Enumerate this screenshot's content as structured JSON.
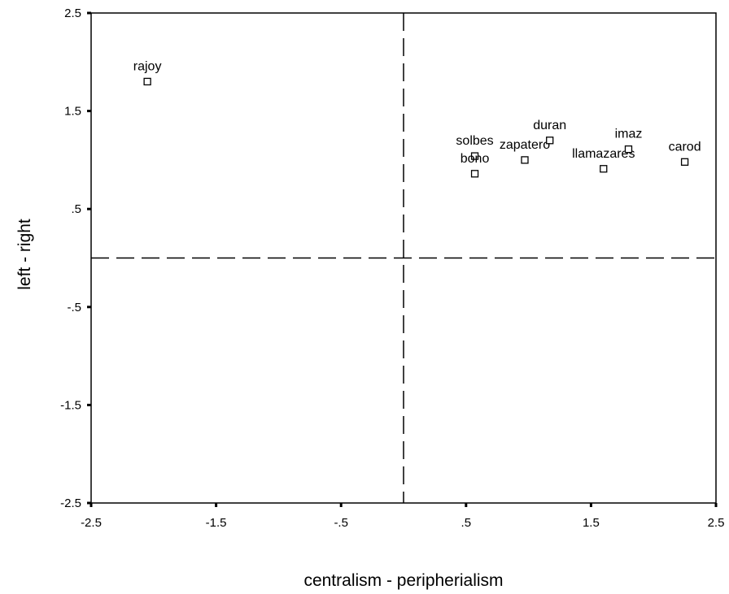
{
  "chart_data": {
    "type": "scatter",
    "xlabel": "centralism - peripherialism",
    "ylabel": "left - right",
    "xlim": [
      -2.5,
      2.5
    ],
    "ylim": [
      -2.5,
      2.5
    ],
    "xticks": [
      -2.5,
      -1.5,
      -0.5,
      0.5,
      1.5,
      2.5
    ],
    "xtick_labels": [
      "-2.5",
      "-1.5",
      "-.5",
      ".5",
      "1.5",
      "2.5"
    ],
    "yticks": [
      2.5,
      1.5,
      0.5,
      -0.5,
      -1.5,
      -2.5
    ],
    "ytick_labels": [
      "2.5",
      "1.5",
      ".5",
      "-.5",
      "-1.5",
      "-2.5"
    ],
    "reference_lines": {
      "x": 0,
      "y": 0,
      "style": "dashed"
    },
    "grid": false,
    "points": [
      {
        "label": "rajoy",
        "x": -2.05,
        "y": 1.8
      },
      {
        "label": "solbes",
        "x": 0.57,
        "y": 1.04
      },
      {
        "label": "bono",
        "x": 0.57,
        "y": 0.86
      },
      {
        "label": "zapatero",
        "x": 0.97,
        "y": 1.0
      },
      {
        "label": "duran",
        "x": 1.17,
        "y": 1.2
      },
      {
        "label": "llamazares",
        "x": 1.6,
        "y": 0.91
      },
      {
        "label": "imaz",
        "x": 1.8,
        "y": 1.11
      },
      {
        "label": "carod",
        "x": 2.25,
        "y": 0.98
      }
    ]
  }
}
